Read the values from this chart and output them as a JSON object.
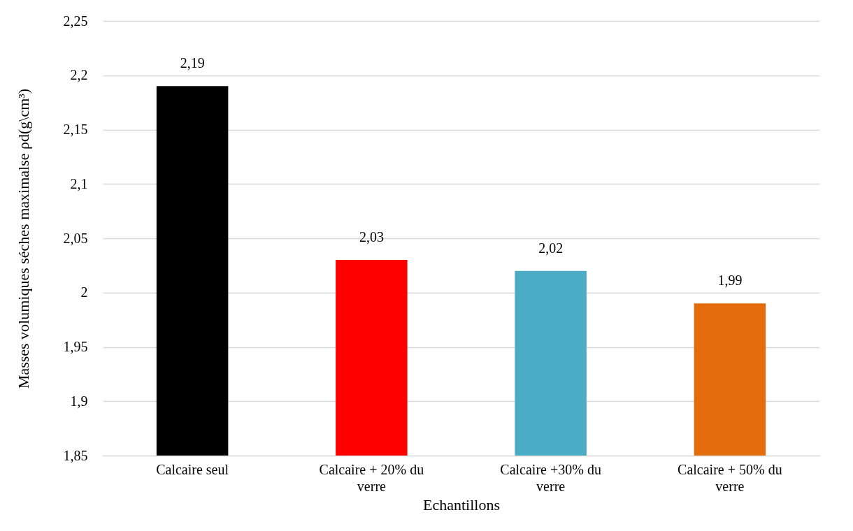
{
  "chart_data": {
    "type": "bar",
    "xlabel": "Echantillons",
    "ylabel": "Masses volumiques séches maximalse ρd(g\\cm³)",
    "categories": [
      "Calcaire seul",
      "Calcaire + 20% du verre",
      "Calcaire +30% du verre",
      "Calcaire + 50% du verre"
    ],
    "values": [
      2.19,
      2.03,
      2.02,
      1.99
    ],
    "value_labels": [
      "2,19",
      "2,03",
      "2,02",
      "1,99"
    ],
    "colors": [
      "#000000",
      "#ff0000",
      "#4bacc6",
      "#e46c0a"
    ],
    "ylim": [
      1.85,
      2.25
    ],
    "yticks": [
      {
        "value": 1.85,
        "label": "1,85"
      },
      {
        "value": 1.9,
        "label": "1,9"
      },
      {
        "value": 1.95,
        "label": "1,95"
      },
      {
        "value": 2,
        "label": "2"
      },
      {
        "value": 2.05,
        "label": "2,05"
      },
      {
        "value": 2.1,
        "label": "2,1"
      },
      {
        "value": 2.15,
        "label": "2,15"
      },
      {
        "value": 2.2,
        "label": "2,2"
      },
      {
        "value": 2.25,
        "label": "2,25"
      }
    ],
    "grid": "y"
  }
}
